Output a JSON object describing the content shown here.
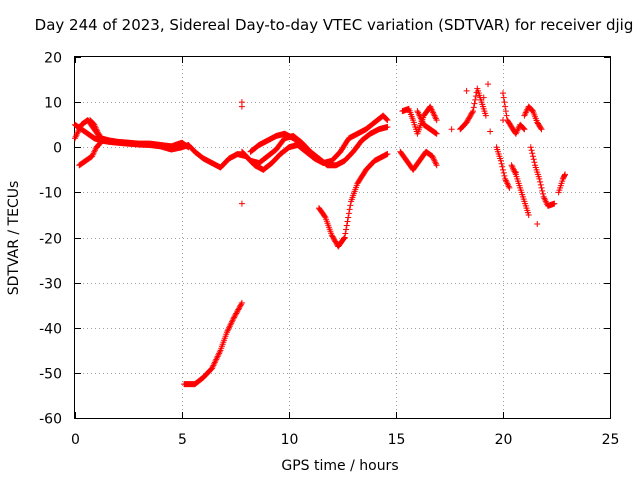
{
  "chart_data": {
    "type": "scatter",
    "title": "Day 244 of 2023, Sidereal Day-to-day VTEC variation (SDTVAR) for receiver djig",
    "xlabel": "GPS time / hours",
    "ylabel": "SDTVAR / TECUs",
    "xlim": [
      0,
      25
    ],
    "ylim": [
      -60,
      20
    ],
    "xticks": [
      0,
      5,
      10,
      15,
      20,
      25
    ],
    "yticks": [
      20,
      10,
      0,
      -10,
      -20,
      -30,
      -40,
      -50,
      -60
    ],
    "grid": true,
    "marker": "+",
    "series": [
      {
        "name": "SDTVAR",
        "color": "#ff0000",
        "segments": [
          [
            [
              0.0,
              5.0
            ],
            [
              0.3,
              4.0
            ],
            [
              0.6,
              3.0
            ],
            [
              0.9,
              2.0
            ],
            [
              1.2,
              1.5
            ],
            [
              1.6,
              1.2
            ],
            [
              2.0,
              1.0
            ],
            [
              2.5,
              0.8
            ],
            [
              3.0,
              0.6
            ],
            [
              3.5,
              0.5
            ],
            [
              4.0,
              0.2
            ],
            [
              4.5,
              -0.5
            ],
            [
              5.0,
              0.0
            ],
            [
              5.3,
              0.5
            ],
            [
              5.6,
              -1.0
            ],
            [
              6.0,
              -2.5
            ],
            [
              6.4,
              -3.5
            ],
            [
              6.8,
              -4.5
            ],
            [
              7.2,
              -2.5
            ],
            [
              7.6,
              -1.5
            ],
            [
              8.0,
              -2.0
            ],
            [
              8.4,
              -4.0
            ],
            [
              8.8,
              -5.0
            ],
            [
              9.2,
              -3.5
            ],
            [
              9.6,
              -1.5
            ],
            [
              10.0,
              0.0
            ],
            [
              10.4,
              0.5
            ],
            [
              10.8,
              -1.0
            ],
            [
              11.2,
              -2.5
            ],
            [
              11.6,
              -3.5
            ],
            [
              12.0,
              -3.0
            ],
            [
              12.4,
              -1.0
            ],
            [
              12.8,
              2.0
            ],
            [
              13.2,
              3.0
            ],
            [
              13.6,
              4.0
            ],
            [
              14.0,
              5.5
            ],
            [
              14.4,
              7.0
            ],
            [
              14.6,
              6.0
            ]
          ],
          [
            [
              0.0,
              2.0
            ],
            [
              0.3,
              5.0
            ],
            [
              0.6,
              6.0
            ],
            [
              0.9,
              4.0
            ],
            [
              1.2,
              2.0
            ],
            [
              1.6,
              1.5
            ],
            [
              2.0,
              1.2
            ],
            [
              2.5,
              1.0
            ],
            [
              3.0,
              0.8
            ],
            [
              3.5,
              0.8
            ],
            [
              4.0,
              0.5
            ],
            [
              4.5,
              0.2
            ],
            [
              5.0,
              1.0
            ],
            [
              5.3,
              0.0
            ]
          ],
          [
            [
              0.2,
              -4.0
            ],
            [
              0.5,
              -3.0
            ],
            [
              0.8,
              -2.0
            ],
            [
              1.0,
              0.0
            ],
            [
              1.2,
              1.0
            ]
          ],
          [
            [
              0.7,
              6.0
            ],
            [
              0.9,
              5.0
            ],
            [
              1.1,
              3.0
            ],
            [
              1.3,
              1.5
            ]
          ],
          [
            [
              7.8,
              -1.0
            ],
            [
              8.2,
              -3.0
            ],
            [
              8.6,
              -3.5
            ],
            [
              9.0,
              -2.0
            ],
            [
              9.4,
              -0.5
            ],
            [
              9.8,
              2.0
            ],
            [
              10.2,
              2.5
            ],
            [
              10.6,
              1.0
            ],
            [
              11.0,
              -1.0
            ],
            [
              11.4,
              -2.5
            ],
            [
              11.8,
              -4.0
            ],
            [
              12.2,
              -4.0
            ],
            [
              12.6,
              -3.0
            ],
            [
              13.0,
              -1.0
            ],
            [
              13.4,
              1.5
            ],
            [
              13.8,
              3.0
            ],
            [
              14.2,
              4.0
            ],
            [
              14.6,
              4.5
            ]
          ],
          [
            [
              8.2,
              -1.0
            ],
            [
              8.6,
              0.5
            ],
            [
              9.0,
              1.5
            ],
            [
              9.4,
              2.5
            ],
            [
              9.8,
              3.0
            ],
            [
              10.2,
              2.0
            ],
            [
              10.6,
              0.5
            ]
          ],
          [
            [
              11.4,
              -13.5
            ],
            [
              11.7,
              -15.5
            ],
            [
              12.0,
              -19.5
            ],
            [
              12.3,
              -22.0
            ],
            [
              12.6,
              -20.0
            ],
            [
              12.9,
              -12.0
            ],
            [
              13.2,
              -8.0
            ],
            [
              13.6,
              -5.0
            ],
            [
              14.0,
              -3.0
            ],
            [
              14.4,
              -2.0
            ],
            [
              14.6,
              -1.5
            ]
          ],
          [
            [
              5.1,
              -52.5
            ],
            [
              5.6,
              -52.5
            ],
            [
              6.0,
              -51.0
            ],
            [
              6.4,
              -49.0
            ],
            [
              6.8,
              -45.0
            ],
            [
              7.1,
              -41.0
            ],
            [
              7.4,
              -38.0
            ],
            [
              7.8,
              -34.5
            ]
          ],
          [
            [
              15.2,
              -1.0
            ],
            [
              15.5,
              -3.0
            ],
            [
              15.8,
              -5.0
            ],
            [
              16.1,
              -3.0
            ],
            [
              16.4,
              -1.0
            ],
            [
              16.7,
              -2.0
            ],
            [
              16.9,
              -4.0
            ]
          ],
          [
            [
              15.3,
              8.0
            ],
            [
              15.6,
              8.5
            ],
            [
              15.8,
              6.0
            ],
            [
              16.0,
              3.0
            ],
            [
              16.3,
              7.0
            ],
            [
              16.6,
              9.0
            ],
            [
              16.9,
              6.0
            ]
          ],
          [
            [
              16.0,
              8.0
            ],
            [
              16.3,
              5.0
            ],
            [
              16.6,
              4.0
            ],
            [
              16.9,
              3.0
            ]
          ],
          [
            [
              18.0,
              4.0
            ],
            [
              18.3,
              5.5
            ],
            [
              18.6,
              8.0
            ],
            [
              18.8,
              13.0
            ],
            [
              19.0,
              10.0
            ],
            [
              19.2,
              7.0
            ]
          ],
          [
            [
              19.7,
              0.0
            ],
            [
              19.9,
              -3.0
            ],
            [
              20.1,
              -7.0
            ],
            [
              20.3,
              -9.0
            ]
          ],
          [
            [
              20.0,
              12.0
            ],
            [
              20.2,
              6.0
            ],
            [
              20.4,
              4.5
            ],
            [
              20.6,
              3.0
            ],
            [
              20.8,
              5.0
            ],
            [
              21.0,
              4.0
            ]
          ],
          [
            [
              20.4,
              -4.0
            ],
            [
              20.6,
              -6.0
            ],
            [
              20.8,
              -9.0
            ],
            [
              21.0,
              -12.0
            ],
            [
              21.2,
              -15.0
            ]
          ],
          [
            [
              21.0,
              7.0
            ],
            [
              21.2,
              9.0
            ],
            [
              21.4,
              8.0
            ],
            [
              21.6,
              5.5
            ],
            [
              21.8,
              4.0
            ]
          ],
          [
            [
              21.3,
              0.0
            ],
            [
              21.5,
              -4.0
            ],
            [
              21.7,
              -7.0
            ],
            [
              21.9,
              -11.0
            ],
            [
              22.1,
              -13.0
            ],
            [
              22.4,
              -12.5
            ]
          ],
          [
            [
              22.6,
              -10.0
            ],
            [
              22.8,
              -7.0
            ],
            [
              22.9,
              -6.0
            ]
          ]
        ]
      }
    ],
    "outliers": [
      [
        7.8,
        10.0
      ],
      [
        7.8,
        9.0
      ],
      [
        7.8,
        -12.5
      ],
      [
        19.4,
        3.5
      ],
      [
        19.3,
        14.0
      ],
      [
        18.3,
        12.5
      ],
      [
        17.6,
        4.0
      ],
      [
        20.5,
        -5.0
      ],
      [
        20.6,
        -5.5
      ],
      [
        21.6,
        -17.0
      ],
      [
        19.1,
        11.0
      ],
      [
        20.0,
        6.0
      ]
    ]
  }
}
